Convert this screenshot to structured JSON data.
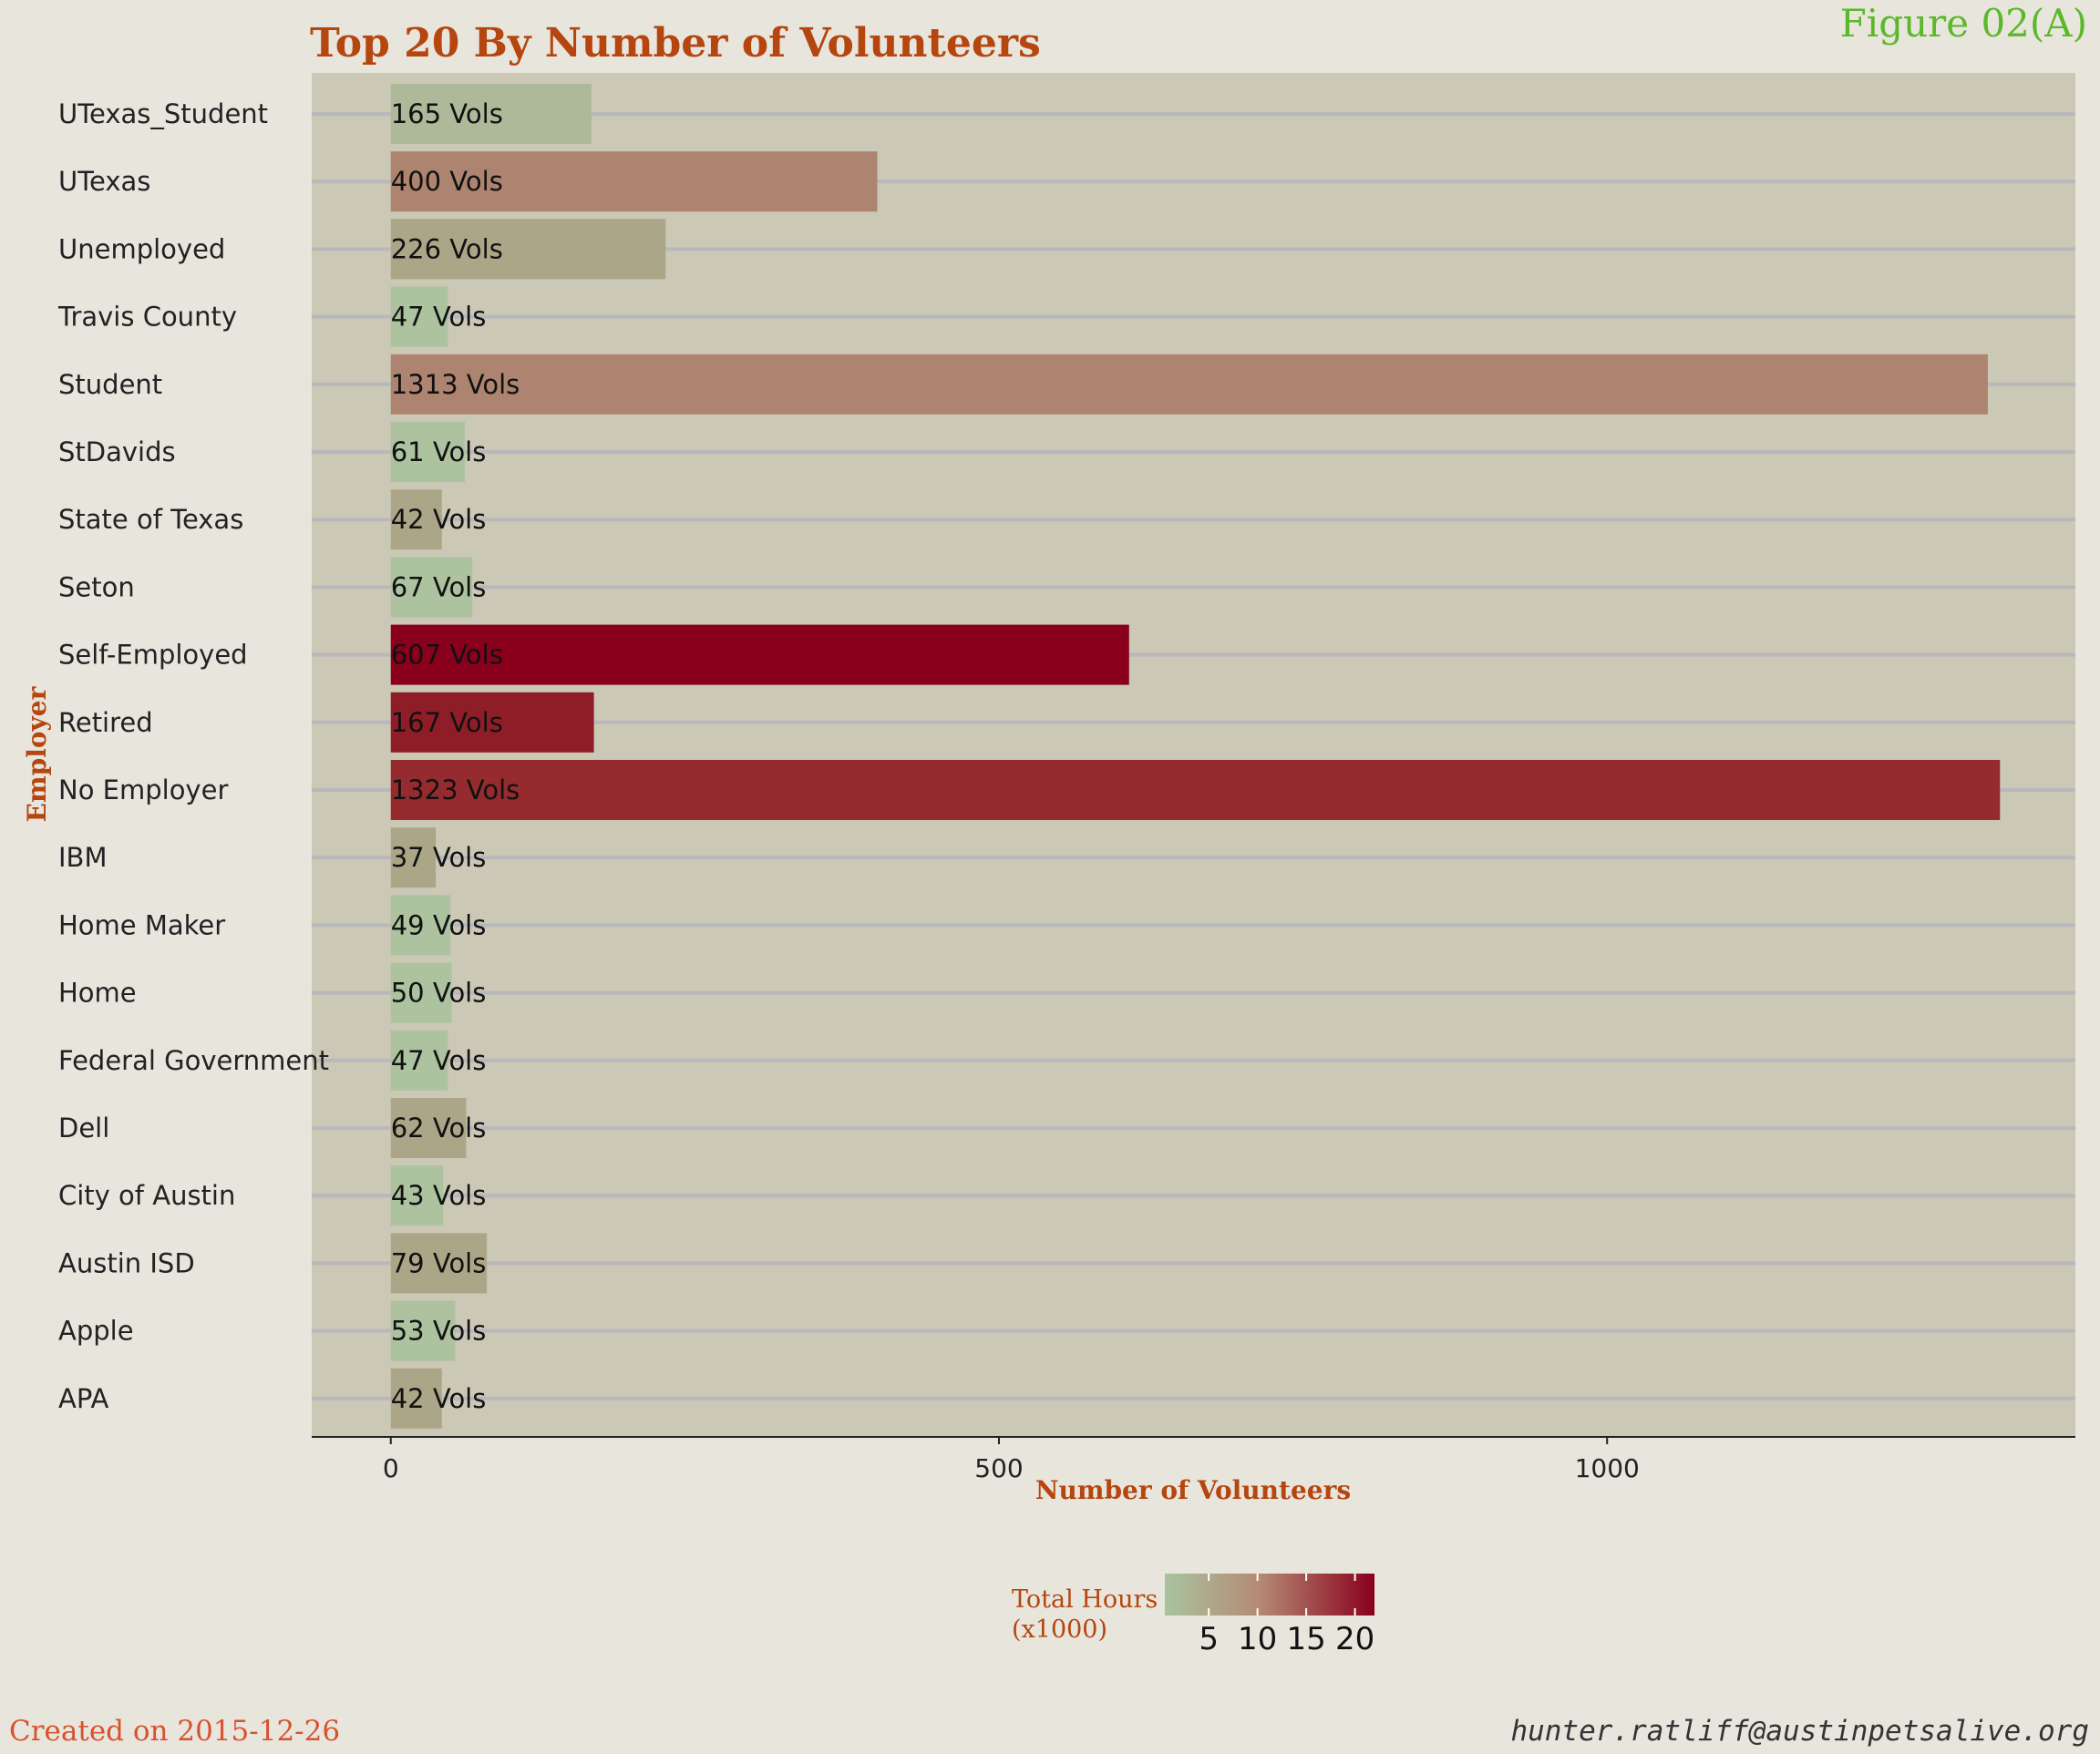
{
  "figure_label": "Figure 02(A)",
  "footer": {
    "created": "Created on 2015-12-26",
    "email": "hunter.ratliff@austinpetsalive.org"
  },
  "colors": {
    "background": "#e8e5dd",
    "panel": "#cbc8b6",
    "gridline": "#b8b8bc",
    "title": "#b5460f",
    "figure_label": "#5cb82a",
    "footer_created": "#d7522d",
    "footer_email": "#333333",
    "gradient_low": "#a9c39f",
    "gradient_mid": "#b58a74",
    "gradient_high": "#8a001c"
  },
  "chart_data": {
    "type": "bar",
    "orientation": "horizontal",
    "title": "Top 20 By Number of Volunteers",
    "xlabel": "Number of Volunteers",
    "ylabel": "Employer",
    "xlim": [
      -65,
      1385
    ],
    "xticks": [
      0,
      500,
      1000
    ],
    "grid": true,
    "legend_position": "bottom",
    "categories": [
      "UTexas_Student",
      "UTexas",
      "Unemployed",
      "Travis County",
      "Student",
      "StDavids",
      "State of Texas",
      "Seton",
      "Self-Employed",
      "Retired",
      "No Employer",
      "IBM",
      "Home Maker",
      "Home",
      "Federal Government",
      "Dell",
      "City of Austin",
      "Austin ISD",
      "Apple",
      "APA"
    ],
    "values": [
      165,
      400,
      226,
      47,
      1313,
      61,
      42,
      67,
      607,
      167,
      1323,
      37,
      49,
      50,
      47,
      62,
      43,
      79,
      53,
      42
    ],
    "bar_labels": [
      "165 Vols",
      "400 Vols",
      "226 Vols",
      "47 Vols",
      "1313 Vols",
      "61 Vols",
      "42 Vols",
      "67 Vols",
      "607 Vols",
      "167 Vols",
      "1323 Vols",
      "37 Vols",
      "49 Vols",
      "50 Vols",
      "47 Vols",
      "62 Vols",
      "43 Vols",
      "79 Vols",
      "53 Vols",
      "42 Vols"
    ],
    "bar_colors": [
      "#adb999",
      "#ad8470",
      "#aca688",
      "#adc39f",
      "#ad8470",
      "#adc39f",
      "#aca688",
      "#adc39f",
      "#8a001c",
      "#8f1d27",
      "#952b2e",
      "#aca688",
      "#adc39f",
      "#adc39f",
      "#adc39f",
      "#aca688",
      "#adc39f",
      "#aca688",
      "#adc39f",
      "#aca688"
    ],
    "color_scale": {
      "title_line1": "Total Hours",
      "title_line2": "(x1000)",
      "min": 0.5,
      "max": 22,
      "ticks": [
        5,
        10,
        15,
        20
      ],
      "tick_labels": [
        "5",
        "10",
        "15",
        "20"
      ]
    }
  }
}
